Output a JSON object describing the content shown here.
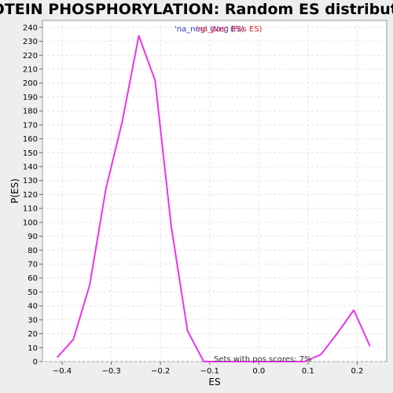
{
  "chart_data": {
    "type": "line",
    "title": "PROTEIN PHOSPHORYLATION: Random ES distribution",
    "xlabel": "ES",
    "ylabel": "P(ES)",
    "xlim": [
      -0.44,
      0.26
    ],
    "ylim": [
      0,
      245
    ],
    "x_ticks": [
      -0.4,
      -0.3,
      -0.2,
      -0.1,
      0.0,
      0.1,
      0.2
    ],
    "x_tick_labels": [
      "−0.4",
      "−0.3",
      "−0.2",
      "−0.1",
      "0.0",
      "0.1",
      "0.2"
    ],
    "y_ticks": [
      0,
      10,
      20,
      30,
      40,
      50,
      60,
      70,
      80,
      90,
      100,
      110,
      120,
      130,
      140,
      150,
      160,
      170,
      180,
      190,
      200,
      210,
      220,
      230,
      240
    ],
    "grid": true,
    "legend": {
      "placement": "top-center",
      "entries": [
        {
          "label": "'na_neg' (Neg ES)",
          "color": "#3333cc"
        },
        {
          "label": "'na_pos' (Pos ES)",
          "color": "#ee2222"
        }
      ]
    },
    "annotation": "Sets with pos scores: 7%",
    "series": [
      {
        "color": "#ee33ee",
        "x": [
          -0.41,
          -0.377,
          -0.344,
          -0.311,
          -0.278,
          -0.244,
          -0.211,
          -0.178,
          -0.145,
          -0.112,
          -0.079,
          -0.046,
          -0.013,
          0.02,
          0.053,
          0.086,
          0.093,
          0.126,
          0.159,
          0.193,
          0.226
        ],
        "y": [
          3,
          16,
          55,
          124,
          172,
          234,
          202,
          97,
          22,
          0,
          0,
          0,
          0,
          0,
          0,
          0,
          0,
          5,
          20,
          37,
          11
        ]
      }
    ]
  }
}
